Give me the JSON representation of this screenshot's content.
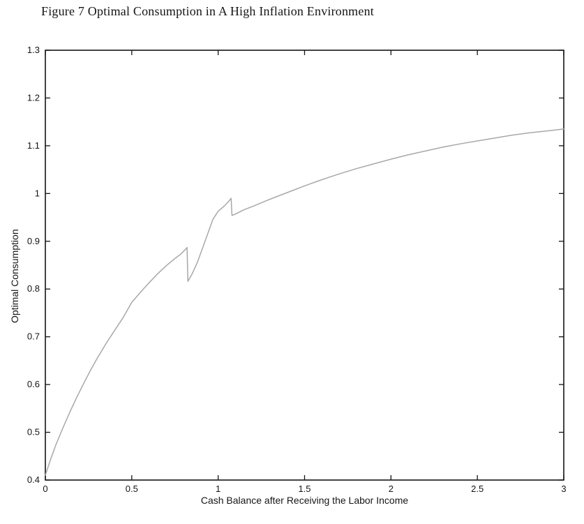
{
  "figure": {
    "title": "Figure 7 Optimal Consumption in A High Inflation Environment"
  },
  "chart_data": {
    "type": "line",
    "title": "Figure 7 Optimal Consumption in A High Inflation Environment",
    "xlabel": "Cash Balance after Receiving the Labor Income",
    "ylabel": "Optimal Consumption",
    "xlim": [
      0,
      3
    ],
    "ylim": [
      0.4,
      1.3
    ],
    "xticks": [
      0,
      0.5,
      1,
      1.5,
      2,
      2.5,
      3
    ],
    "yticks": [
      0.4,
      0.5,
      0.6,
      0.7,
      0.8,
      0.9,
      1,
      1.1,
      1.2,
      1.3
    ],
    "grid": false,
    "legend": "none",
    "colors": {
      "line": "#a8a8a8",
      "axis": "#141414",
      "text": "#141414"
    },
    "annotations": [
      "discontinuity near x=0.82 (drop from ~0.89 to ~0.82)",
      "discontinuity near x=1.08 (drop from ~0.99 to ~0.95)"
    ],
    "series": [
      {
        "name": "Optimal Consumption",
        "x": [
          0,
          0.03,
          0.06,
          0.1,
          0.14,
          0.18,
          0.22,
          0.26,
          0.3,
          0.35,
          0.4,
          0.45,
          0.5,
          0.55,
          0.6,
          0.65,
          0.7,
          0.75,
          0.78,
          0.8,
          0.82,
          0.825,
          0.85,
          0.88,
          0.91,
          0.94,
          0.97,
          1.0,
          1.03,
          1.06,
          1.075,
          1.08,
          1.1,
          1.15,
          1.2,
          1.3,
          1.4,
          1.5,
          1.6,
          1.7,
          1.8,
          1.9,
          2.0,
          2.1,
          2.2,
          2.3,
          2.4,
          2.5,
          2.6,
          2.7,
          2.8,
          2.9,
          3.0
        ],
        "y": [
          0.41,
          0.443,
          0.473,
          0.508,
          0.541,
          0.572,
          0.601,
          0.629,
          0.655,
          0.685,
          0.713,
          0.74,
          0.772,
          0.793,
          0.813,
          0.832,
          0.849,
          0.864,
          0.872,
          0.879,
          0.887,
          0.816,
          0.832,
          0.856,
          0.886,
          0.916,
          0.946,
          0.963,
          0.972,
          0.983,
          0.99,
          0.954,
          0.957,
          0.966,
          0.973,
          0.988,
          1.002,
          1.016,
          1.029,
          1.041,
          1.052,
          1.062,
          1.072,
          1.081,
          1.089,
          1.097,
          1.104,
          1.11,
          1.116,
          1.122,
          1.127,
          1.131,
          1.135
        ]
      }
    ]
  }
}
